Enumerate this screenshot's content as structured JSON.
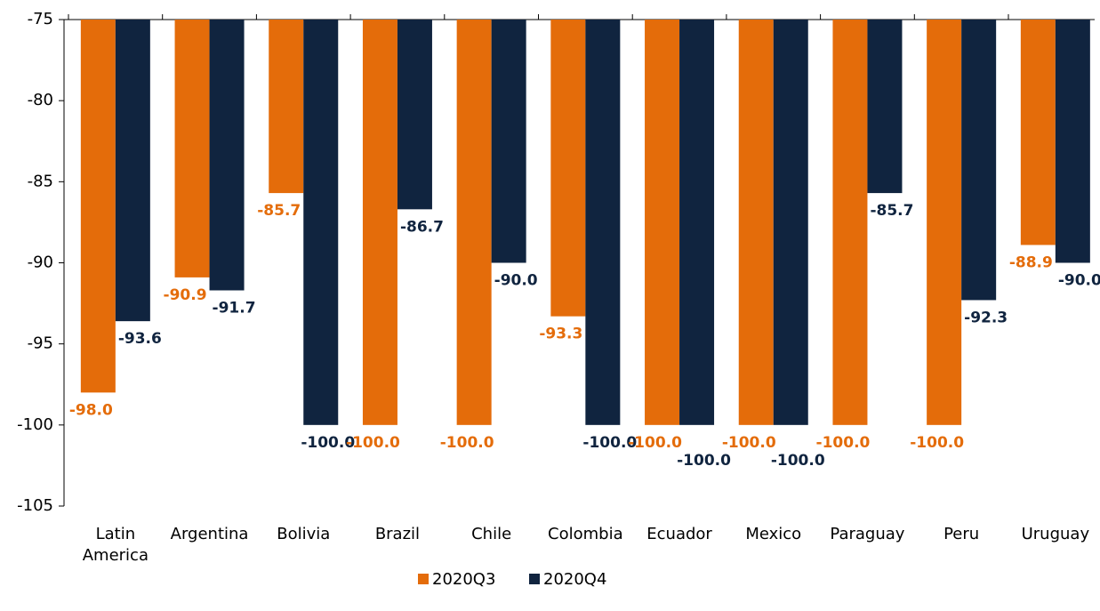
{
  "chart_data": {
    "type": "bar",
    "categories": [
      "Latin America",
      "Argentina",
      "Bolivia",
      "Brazil",
      "Chile",
      "Colombia",
      "Ecuador",
      "Mexico",
      "Paraguay",
      "Peru",
      "Uruguay"
    ],
    "series": [
      {
        "name": "2020Q3",
        "color": "#e46c0a",
        "values": [
          -98.0,
          -90.9,
          -85.7,
          -100,
          -100,
          -93.3,
          -100,
          -100,
          -100,
          -100,
          -88.9
        ],
        "value_labels": [
          "-98.0",
          "-90.9",
          "-85.7",
          "-100.0",
          "-100.0",
          "-93.3",
          "-100.0",
          "-100.0",
          "-100.0",
          "-100.0",
          "-88.9"
        ]
      },
      {
        "name": "2020Q4",
        "color": "#10243f",
        "values": [
          -93.6,
          -91.7,
          -100,
          -86.7,
          -90.0,
          -100,
          -100,
          -100,
          -85.7,
          -92.3,
          -90.0
        ],
        "value_labels": [
          "-93.6",
          "-91.7",
          "-100.0",
          "-86.7",
          "-90.0",
          "-100.0",
          "-100.0",
          "-100.0",
          "-85.7",
          "-92.3",
          "-90.0"
        ]
      }
    ],
    "ylim": [
      -105,
      -75
    ],
    "yticks": [
      -75,
      -80,
      -85,
      -90,
      -95,
      -100,
      -105
    ],
    "grid": false,
    "legend": "bottom"
  }
}
